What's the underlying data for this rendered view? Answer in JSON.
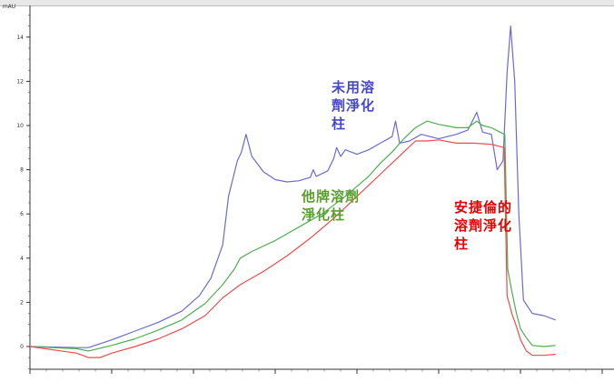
{
  "chart_data": {
    "type": "line",
    "y_unit": "mAU",
    "xlim": [
      0,
      100
    ],
    "ylim": [
      -1,
      15
    ],
    "y_ticks": [
      0,
      2,
      4,
      6,
      8,
      10,
      12,
      14
    ],
    "grid": false,
    "series": [
      {
        "name": "未用溶劑淨化柱",
        "color": "#6a6ad6",
        "points": [
          [
            0,
            0
          ],
          [
            8,
            -0.05
          ],
          [
            10,
            -0.05
          ],
          [
            14,
            0.3
          ],
          [
            18,
            0.7
          ],
          [
            22,
            1.1
          ],
          [
            26,
            1.6
          ],
          [
            29,
            2.3
          ],
          [
            31,
            3.1
          ],
          [
            33,
            4.6
          ],
          [
            34,
            6.8
          ],
          [
            35.5,
            8.4
          ],
          [
            36.2,
            8.8
          ],
          [
            37,
            9.6
          ],
          [
            38,
            8.6
          ],
          [
            40,
            7.9
          ],
          [
            42,
            7.55
          ],
          [
            44,
            7.45
          ],
          [
            46,
            7.5
          ],
          [
            48,
            7.65
          ],
          [
            48.5,
            8.0
          ],
          [
            49,
            7.7
          ],
          [
            51,
            7.95
          ],
          [
            52,
            8.5
          ],
          [
            52.5,
            9.0
          ],
          [
            53.2,
            8.6
          ],
          [
            54,
            8.9
          ],
          [
            56,
            8.7
          ],
          [
            58,
            8.9
          ],
          [
            60,
            9.2
          ],
          [
            62,
            9.5
          ],
          [
            62.6,
            10.2
          ],
          [
            63.3,
            9.2
          ],
          [
            65,
            9.3
          ],
          [
            67,
            9.6
          ],
          [
            68.5,
            9.5
          ],
          [
            70,
            9.4
          ],
          [
            73,
            9.6
          ],
          [
            75,
            9.8
          ],
          [
            76.5,
            10.6
          ],
          [
            77.5,
            9.7
          ],
          [
            79,
            9.6
          ],
          [
            80,
            8.0
          ],
          [
            81,
            8.4
          ],
          [
            81.7,
            12.4
          ],
          [
            82.3,
            14.5
          ],
          [
            83,
            12
          ],
          [
            83.7,
            6
          ],
          [
            84.5,
            2.1
          ],
          [
            86,
            1.5
          ],
          [
            88,
            1.4
          ],
          [
            90,
            1.2
          ]
        ]
      },
      {
        "name": "他牌溶劑淨化柱",
        "color": "#4caf50",
        "points": [
          [
            0,
            0
          ],
          [
            8,
            -0.1
          ],
          [
            10,
            -0.2
          ],
          [
            14,
            0.05
          ],
          [
            18,
            0.35
          ],
          [
            22,
            0.75
          ],
          [
            26,
            1.2
          ],
          [
            30,
            1.95
          ],
          [
            33,
            2.8
          ],
          [
            35,
            3.5
          ],
          [
            36,
            4.0
          ],
          [
            38,
            4.3
          ],
          [
            42,
            4.8
          ],
          [
            46,
            5.4
          ],
          [
            50,
            6.0
          ],
          [
            54,
            6.8
          ],
          [
            58,
            7.7
          ],
          [
            60,
            8.3
          ],
          [
            62,
            8.8
          ],
          [
            64,
            9.4
          ],
          [
            66,
            9.9
          ],
          [
            68,
            10.2
          ],
          [
            70,
            10.05
          ],
          [
            73,
            9.9
          ],
          [
            75,
            9.9
          ],
          [
            76.5,
            10.2
          ],
          [
            77.5,
            10.0
          ],
          [
            79,
            9.9
          ],
          [
            80.5,
            9.7
          ],
          [
            81.3,
            9.6
          ],
          [
            81.8,
            3.5
          ],
          [
            82.5,
            2.5
          ],
          [
            83.3,
            1.5
          ],
          [
            84,
            0.8
          ],
          [
            85,
            0.4
          ],
          [
            86,
            0.05
          ],
          [
            88,
            0
          ],
          [
            90,
            0.05
          ]
        ]
      },
      {
        "name": "安捷倫的溶劑淨化柱",
        "color": "#ef4b4b",
        "points": [
          [
            0,
            0
          ],
          [
            8,
            -0.3
          ],
          [
            10,
            -0.5
          ],
          [
            12,
            -0.5
          ],
          [
            14,
            -0.3
          ],
          [
            18,
            0
          ],
          [
            22,
            0.35
          ],
          [
            26,
            0.8
          ],
          [
            30,
            1.4
          ],
          [
            33,
            2.2
          ],
          [
            36,
            2.8
          ],
          [
            40,
            3.4
          ],
          [
            44,
            4.1
          ],
          [
            48,
            4.9
          ],
          [
            52,
            5.8
          ],
          [
            56,
            6.8
          ],
          [
            60,
            7.8
          ],
          [
            64,
            8.8
          ],
          [
            66,
            9.3
          ],
          [
            68,
            9.3
          ],
          [
            70,
            9.35
          ],
          [
            73,
            9.2
          ],
          [
            76,
            9.2
          ],
          [
            79,
            9.15
          ],
          [
            80.5,
            9.05
          ],
          [
            81.2,
            9.0
          ],
          [
            81.7,
            2.3
          ],
          [
            82.5,
            1.5
          ],
          [
            83.3,
            0.9
          ],
          [
            84,
            0.3
          ],
          [
            85,
            -0.2
          ],
          [
            86,
            -0.4
          ],
          [
            88,
            -0.4
          ],
          [
            90,
            -0.35
          ]
        ]
      }
    ],
    "annotations": [
      {
        "text": "未用溶\n劑淨化\n柱",
        "color": "#4646c8"
      },
      {
        "text": "他牌溶劑\n淨化柱",
        "color": "#5aa02c"
      },
      {
        "text": "安捷倫的\n溶劑淨化\n柱",
        "color": "#e60000"
      }
    ]
  }
}
